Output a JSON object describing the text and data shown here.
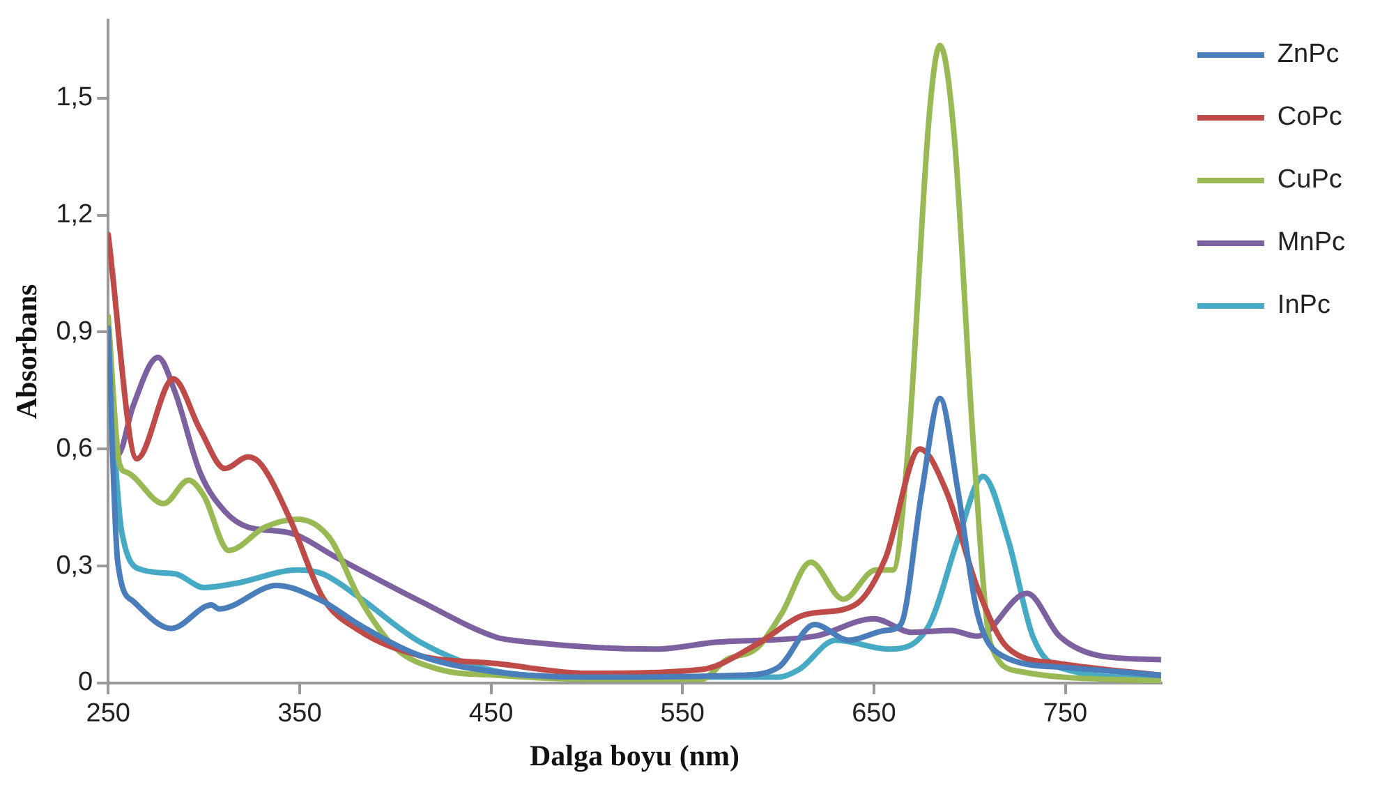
{
  "chart_data": {
    "type": "line",
    "xlabel": "Dalga boyu (nm)",
    "ylabel": "Absorbans",
    "xlim": [
      250,
      800
    ],
    "xticks": [
      250,
      350,
      450,
      550,
      650,
      750
    ],
    "ylim": [
      0,
      1.7
    ],
    "yticks": [
      0,
      {
        "value": 0.3,
        "label": "0,3"
      },
      {
        "value": 0.6,
        "label": "0,6"
      },
      {
        "value": 0.9,
        "label": "0,9"
      },
      {
        "value": 1.2,
        "label": "1,2"
      },
      {
        "value": 1.5,
        "label": "1,5"
      }
    ],
    "grid": false,
    "legend": "right",
    "marker": "none",
    "line_style": "solid",
    "series": [
      {
        "name": "ZnPc",
        "color": "#4a7ebb",
        "x": [
          250,
          255,
          263,
          283,
          304,
          308,
          338,
          362,
          381,
          413,
          450,
          500,
          580,
          600,
          619,
          637,
          656,
          664,
          675,
          684.5,
          694,
          704,
          717,
          750,
          800
        ],
        "values": [
          0.91,
          0.31,
          0.21,
          0.14,
          0.2,
          0.19,
          0.25,
          0.21,
          0.15,
          0.07,
          0.03,
          0.015,
          0.02,
          0.04,
          0.15,
          0.11,
          0.135,
          0.15,
          0.49,
          0.73,
          0.49,
          0.18,
          0.07,
          0.04,
          0.02
        ]
      },
      {
        "name": "CoPc",
        "color": "#be4b48",
        "x": [
          250,
          265,
          284,
          298,
          311,
          323,
          330,
          345,
          362,
          381,
          413,
          453,
          500,
          560,
          589,
          611,
          619,
          640,
          656,
          674,
          688,
          704,
          720,
          747,
          800
        ],
        "values": [
          1.15,
          0.575,
          0.78,
          0.65,
          0.55,
          0.58,
          0.56,
          0.42,
          0.22,
          0.135,
          0.07,
          0.05,
          0.025,
          0.035,
          0.1,
          0.17,
          0.18,
          0.2,
          0.32,
          0.6,
          0.49,
          0.245,
          0.09,
          0.05,
          0.02
        ]
      },
      {
        "name": "CuPc",
        "color": "#98b954",
        "x": [
          250,
          256,
          260,
          279,
          292,
          300,
          313,
          332,
          349,
          366,
          381,
          400,
          423,
          453,
          500,
          560,
          573,
          589,
          602,
          617,
          634,
          651,
          660,
          668,
          679,
          684.5,
          692,
          702,
          711,
          726,
          800
        ],
        "values": [
          0.94,
          0.56,
          0.54,
          0.46,
          0.52,
          0.48,
          0.34,
          0.4,
          0.42,
          0.37,
          0.22,
          0.09,
          0.035,
          0.02,
          0.01,
          0.01,
          0.06,
          0.09,
          0.18,
          0.31,
          0.215,
          0.29,
          0.29,
          0.61,
          1.46,
          1.635,
          1.4,
          0.61,
          0.1,
          0.03,
          0.005
        ]
      },
      {
        "name": "MnPc",
        "color": "#7d60a0",
        "x": [
          250,
          255,
          263,
          276,
          285,
          298,
          311,
          323,
          345,
          370,
          413,
          453,
          461,
          536,
          568,
          619,
          650,
          670,
          690,
          704,
          730,
          747,
          768,
          800
        ],
        "values": [
          0.88,
          0.585,
          0.71,
          0.835,
          0.745,
          0.54,
          0.44,
          0.4,
          0.385,
          0.32,
          0.21,
          0.117,
          0.11,
          0.087,
          0.105,
          0.12,
          0.165,
          0.13,
          0.135,
          0.12,
          0.23,
          0.12,
          0.07,
          0.06
        ]
      },
      {
        "name": "InPc",
        "color": "#46aac5",
        "x": [
          250,
          257,
          268,
          285,
          300,
          317,
          349,
          362,
          381,
          413,
          453,
          500,
          600,
          611,
          630,
          658,
          679,
          694,
          707,
          720,
          733,
          747,
          800
        ],
        "values": [
          0.85,
          0.39,
          0.29,
          0.28,
          0.245,
          0.256,
          0.29,
          0.28,
          0.22,
          0.105,
          0.03,
          0.015,
          0.015,
          0.035,
          0.11,
          0.087,
          0.15,
          0.37,
          0.53,
          0.37,
          0.12,
          0.04,
          0.01
        ]
      }
    ]
  }
}
